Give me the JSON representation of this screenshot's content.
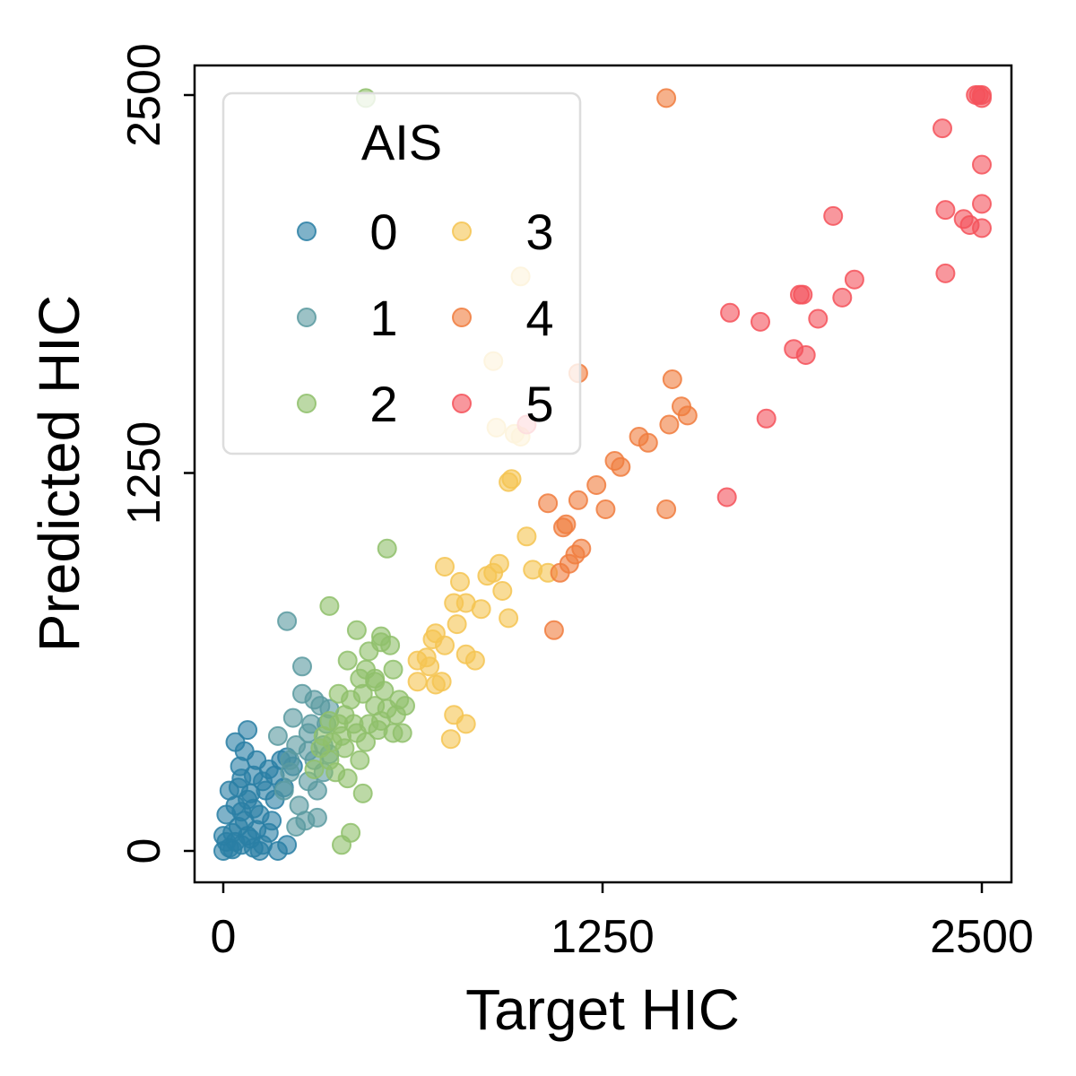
{
  "chart_data": {
    "type": "scatter",
    "xlabel": "Target HIC",
    "ylabel": "Predicted HIC",
    "xlim": [
      -100,
      2600
    ],
    "ylim": [
      -100,
      2600
    ],
    "xticks": [
      0,
      1250,
      2500
    ],
    "yticks": [
      0,
      1250,
      2500
    ],
    "xtick_labels": [
      "0",
      "1250",
      "2500"
    ],
    "ytick_labels": [
      "0",
      "1250",
      "2500"
    ],
    "grid": false,
    "legend": {
      "title": "AIS",
      "placement": "upper-left",
      "columns": 2,
      "entries": [
        "0",
        "1",
        "2",
        "3",
        "4",
        "5"
      ]
    },
    "series": [
      {
        "name": "0",
        "color": "#2a7fa5",
        "points": [
          [
            0,
            0
          ],
          [
            20,
            10
          ],
          [
            40,
            30
          ],
          [
            60,
            20
          ],
          [
            80,
            50
          ],
          [
            100,
            10
          ],
          [
            120,
            0
          ],
          [
            30,
            60
          ],
          [
            50,
            80
          ],
          [
            70,
            100
          ],
          [
            90,
            40
          ],
          [
            110,
            70
          ],
          [
            130,
            20
          ],
          [
            150,
            60
          ],
          [
            10,
            120
          ],
          [
            40,
            150
          ],
          [
            60,
            130
          ],
          [
            80,
            170
          ],
          [
            100,
            140
          ],
          [
            20,
            200
          ],
          [
            50,
            210
          ],
          [
            90,
            190
          ],
          [
            130,
            230
          ],
          [
            150,
            270
          ],
          [
            170,
            250
          ],
          [
            190,
            300
          ],
          [
            210,
            310
          ],
          [
            60,
            240
          ],
          [
            100,
            250
          ],
          [
            140,
            200
          ],
          [
            40,
            360
          ],
          [
            70,
            330
          ],
          [
            80,
            400
          ],
          [
            180,
            0
          ],
          [
            210,
            20
          ],
          [
            160,
            100
          ],
          [
            0,
            50
          ],
          [
            10,
            30
          ],
          [
            30,
            5
          ],
          [
            120,
            120
          ],
          [
            170,
            170
          ],
          [
            200,
            210
          ],
          [
            230,
            280
          ],
          [
            110,
            300
          ],
          [
            55,
            280
          ]
        ]
      },
      {
        "name": "1",
        "color": "#5a9aa0",
        "points": [
          [
            210,
            760
          ],
          [
            280,
            390
          ],
          [
            300,
            500
          ],
          [
            320,
            480
          ],
          [
            260,
            520
          ],
          [
            240,
            350
          ],
          [
            220,
            300
          ],
          [
            200,
            200
          ],
          [
            300,
            300
          ],
          [
            330,
            350
          ],
          [
            280,
            230
          ],
          [
            250,
            150
          ],
          [
            240,
            80
          ],
          [
            270,
            100
          ],
          [
            310,
            200
          ],
          [
            290,
            420
          ],
          [
            230,
            440
          ],
          [
            260,
            610
          ],
          [
            350,
            470
          ],
          [
            180,
            380
          ],
          [
            330,
            260
          ],
          [
            220,
            260
          ],
          [
            310,
            110
          ],
          [
            340,
            420
          ],
          [
            350,
            320
          ],
          [
            280,
            330
          ]
        ]
      },
      {
        "name": "2",
        "color": "#8fc06b",
        "points": [
          [
            470,
            2490
          ],
          [
            540,
            1000
          ],
          [
            350,
            810
          ],
          [
            440,
            730
          ],
          [
            520,
            690
          ],
          [
            550,
            680
          ],
          [
            410,
            630
          ],
          [
            470,
            600
          ],
          [
            500,
            570
          ],
          [
            560,
            600
          ],
          [
            380,
            520
          ],
          [
            420,
            500
          ],
          [
            460,
            520
          ],
          [
            500,
            480
          ],
          [
            540,
            470
          ],
          [
            570,
            450
          ],
          [
            400,
            450
          ],
          [
            350,
            430
          ],
          [
            330,
            380
          ],
          [
            360,
            360
          ],
          [
            400,
            340
          ],
          [
            440,
            390
          ],
          [
            480,
            420
          ],
          [
            510,
            400
          ],
          [
            560,
            390
          ],
          [
            590,
            390
          ],
          [
            450,
            300
          ],
          [
            370,
            260
          ],
          [
            410,
            240
          ],
          [
            460,
            190
          ],
          [
            420,
            60
          ],
          [
            390,
            20
          ],
          [
            500,
            560
          ],
          [
            530,
            530
          ],
          [
            350,
            300
          ],
          [
            380,
            420
          ],
          [
            430,
            420
          ],
          [
            470,
            360
          ],
          [
            520,
            430
          ],
          [
            580,
            500
          ],
          [
            600,
            480
          ],
          [
            390,
            380
          ],
          [
            300,
            270
          ],
          [
            320,
            340
          ],
          [
            450,
            570
          ],
          [
            480,
            660
          ],
          [
            520,
            710
          ]
        ]
      },
      {
        "name": "3",
        "color": "#f5c452",
        "points": [
          [
            980,
            1900
          ],
          [
            890,
            1620
          ],
          [
            960,
            1380
          ],
          [
            980,
            1370
          ],
          [
            900,
            1400
          ],
          [
            950,
            1230
          ],
          [
            940,
            1220
          ],
          [
            1000,
            1040
          ],
          [
            1070,
            920
          ],
          [
            1020,
            930
          ],
          [
            910,
            950
          ],
          [
            890,
            920
          ],
          [
            800,
            820
          ],
          [
            870,
            910
          ],
          [
            920,
            860
          ],
          [
            850,
            800
          ],
          [
            940,
            770
          ],
          [
            730,
            940
          ],
          [
            780,
            890
          ],
          [
            770,
            750
          ],
          [
            730,
            680
          ],
          [
            700,
            720
          ],
          [
            640,
            630
          ],
          [
            680,
            610
          ],
          [
            720,
            560
          ],
          [
            760,
            450
          ],
          [
            800,
            420
          ],
          [
            750,
            370
          ],
          [
            640,
            560
          ],
          [
            700,
            550
          ],
          [
            670,
            640
          ],
          [
            690,
            700
          ],
          [
            760,
            820
          ],
          [
            800,
            650
          ],
          [
            830,
            630
          ]
        ]
      },
      {
        "name": "4",
        "color": "#f07d3e",
        "points": [
          [
            1460,
            2490
          ],
          [
            1170,
            1580
          ],
          [
            1480,
            1560
          ],
          [
            1510,
            1470
          ],
          [
            1530,
            1440
          ],
          [
            1470,
            1410
          ],
          [
            1370,
            1370
          ],
          [
            1400,
            1350
          ],
          [
            1290,
            1290
          ],
          [
            1310,
            1270
          ],
          [
            1230,
            1210
          ],
          [
            1170,
            1160
          ],
          [
            1070,
            1150
          ],
          [
            1260,
            1130
          ],
          [
            1460,
            1130
          ],
          [
            1130,
            1080
          ],
          [
            1120,
            1070
          ],
          [
            1180,
            1000
          ],
          [
            1160,
            980
          ],
          [
            1140,
            950
          ],
          [
            1110,
            920
          ],
          [
            1090,
            730
          ]
        ]
      },
      {
        "name": "5",
        "color": "#f4525b",
        "points": [
          [
            2500,
            2500
          ],
          [
            2490,
            2500
          ],
          [
            2480,
            2500
          ],
          [
            2500,
            2490
          ],
          [
            2370,
            2390
          ],
          [
            2500,
            2270
          ],
          [
            2380,
            2120
          ],
          [
            2440,
            2090
          ],
          [
            2460,
            2070
          ],
          [
            2500,
            2060
          ],
          [
            2500,
            2140
          ],
          [
            2010,
            2100
          ],
          [
            2380,
            1910
          ],
          [
            2080,
            1890
          ],
          [
            2040,
            1830
          ],
          [
            1900,
            1840
          ],
          [
            1910,
            1840
          ],
          [
            1670,
            1780
          ],
          [
            1770,
            1750
          ],
          [
            1960,
            1760
          ],
          [
            1880,
            1660
          ],
          [
            1920,
            1640
          ],
          [
            1790,
            1430
          ],
          [
            1660,
            1170
          ],
          [
            1000,
            1410
          ]
        ]
      }
    ]
  }
}
